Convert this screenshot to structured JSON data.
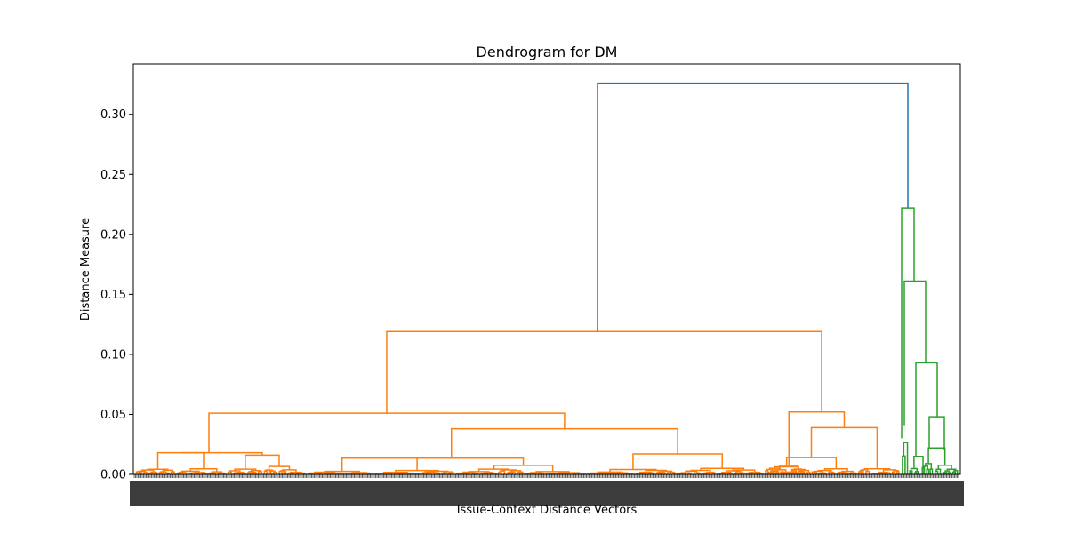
{
  "chart_data": {
    "type": "dendrogram",
    "title": "Dendrogram for DM",
    "xlabel": "Issue-Context Distance Vectors",
    "ylabel": "Distance Measure",
    "ylim": [
      0,
      0.342
    ],
    "yticks": [
      "0.00",
      "0.05",
      "0.10",
      "0.15",
      "0.20",
      "0.25",
      "0.30"
    ],
    "grid": false,
    "legend": "none",
    "colors": {
      "above_threshold": "#1f77b4",
      "cluster_1": "#ff7f0e",
      "cluster_2": "#2ca02c"
    },
    "root_merge_height": 0.326,
    "cluster_1_merges": [
      0.119,
      0.051,
      0.052,
      0.038,
      0.039,
      0.018,
      0.016,
      0.017,
      0.014,
      0.014
    ],
    "cluster_2_merges": [
      0.222,
      0.161,
      0.093,
      0.048,
      0.022,
      0.015,
      0.041
    ]
  }
}
